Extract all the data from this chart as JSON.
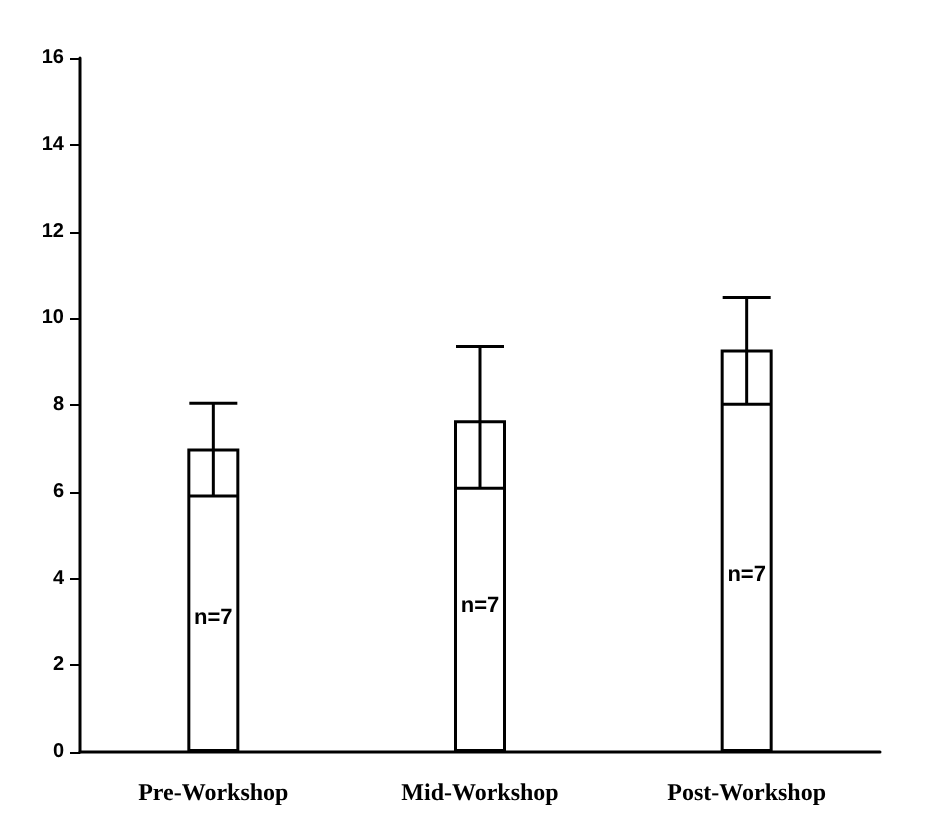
{
  "chart_data": {
    "type": "bar",
    "categories": [
      "Pre-Workshop",
      "Mid-Workshop",
      "Post-Workshop"
    ],
    "values": [
      7.0,
      7.65,
      9.28
    ],
    "errors": [
      [
        5.9,
        8.04
      ],
      [
        6.08,
        9.35
      ],
      [
        8.02,
        10.48
      ]
    ],
    "color": "#ffffff",
    "ylim": [
      0,
      16
    ],
    "yticks": [
      0,
      2,
      4,
      6,
      8,
      10,
      12,
      14,
      16
    ],
    "grid": false,
    "annotations": [
      "n=7",
      "n=7",
      "n=7"
    ]
  }
}
